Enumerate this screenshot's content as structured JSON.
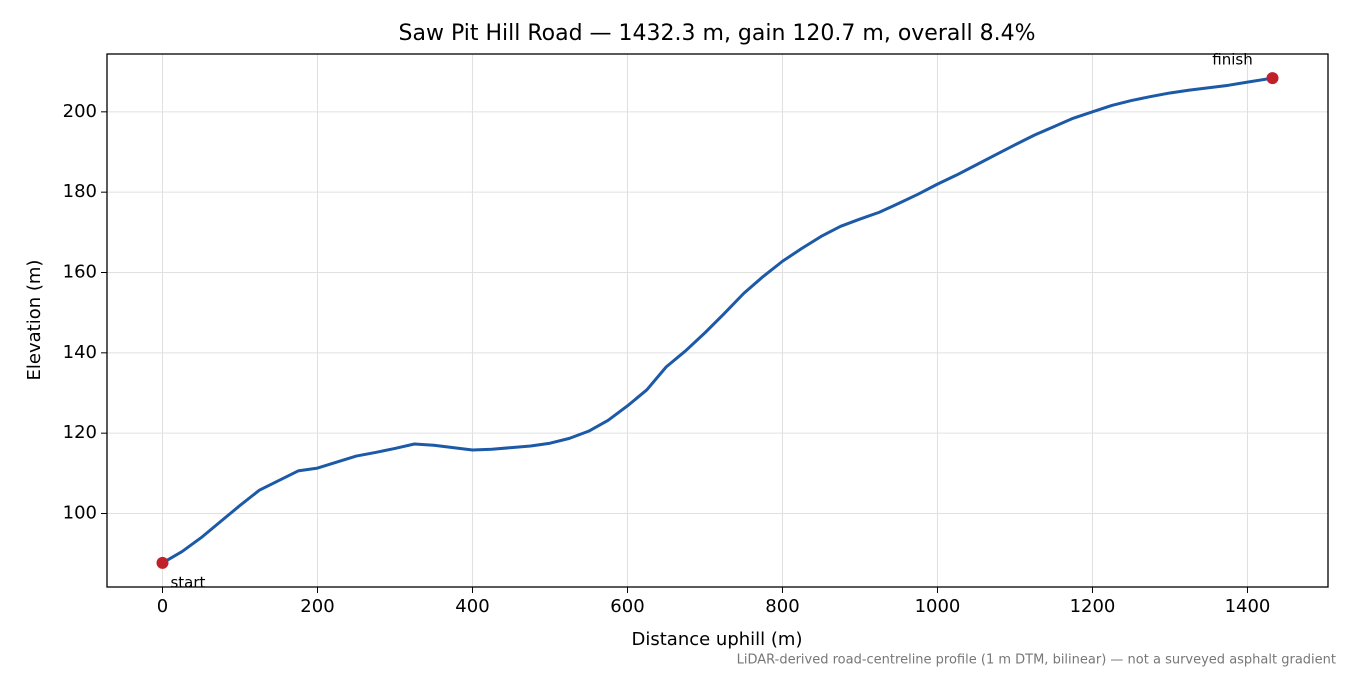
{
  "chart_data": {
    "type": "line",
    "title": "Saw Pit Hill Road — 1432.3 m, gain 120.7 m, overall 8.4%",
    "x_label": "Distance uphill (m)",
    "y_label": "Elevation (m)",
    "footnote": "LiDAR-derived road-centreline profile (1 m DTM, bilinear) — not a surveyed asphalt gradient",
    "x": [
      0,
      25,
      50,
      75,
      100,
      125,
      150,
      175,
      200,
      225,
      250,
      275,
      300,
      325,
      350,
      375,
      400,
      425,
      450,
      475,
      500,
      525,
      550,
      575,
      600,
      625,
      650,
      675,
      700,
      725,
      750,
      775,
      800,
      825,
      850,
      875,
      900,
      925,
      950,
      975,
      1000,
      1025,
      1050,
      1075,
      1100,
      1125,
      1150,
      1175,
      1200,
      1225,
      1250,
      1275,
      1300,
      1325,
      1350,
      1375,
      1400,
      1432.3
    ],
    "series": [
      {
        "color": "#1c5aa8",
        "values": [
          87.7,
          90.5,
          94,
          98,
          102,
          105.8,
          108.2,
          110.6,
          111.3,
          112.8,
          114.3,
          115.2,
          116.2,
          117.3,
          117,
          116.4,
          115.8,
          116,
          116.4,
          116.8,
          117.5,
          118.7,
          120.5,
          123.2,
          126.8,
          130.8,
          136.5,
          140.5,
          145,
          149.8,
          154.8,
          159,
          162.8,
          166,
          169,
          171.5,
          173.3,
          175,
          177.2,
          179.5,
          182,
          184.3,
          186.8,
          189.3,
          191.8,
          194.2,
          196.3,
          198.4,
          200,
          201.6,
          202.8,
          203.8,
          204.7,
          205.4,
          206,
          206.6,
          207.4,
          208.4
        ]
      }
    ],
    "markers": [
      {
        "label": "start",
        "x": 0,
        "y": 87.7,
        "color": "#c0202a"
      },
      {
        "label": "finish",
        "x": 1432.3,
        "y": 208.4,
        "color": "#c0202a"
      }
    ],
    "xlim": [
      -71.6,
      1503.9
    ],
    "ylim": [
      81.7,
      214.4
    ],
    "xticks": [
      0,
      200,
      400,
      600,
      800,
      1000,
      1200,
      1400
    ],
    "yticks": [
      100,
      120,
      140,
      160,
      180,
      200
    ],
    "grid": true
  }
}
